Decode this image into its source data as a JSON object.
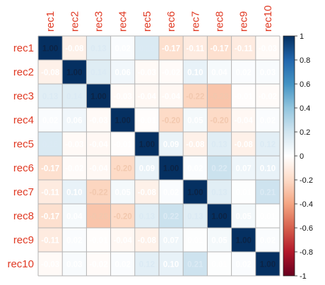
{
  "chart_data": {
    "type": "heatmap",
    "title": "",
    "rows": [
      "rec1",
      "rec2",
      "rec3",
      "rec4",
      "rec5",
      "rec6",
      "rec7",
      "rec8",
      "rec9",
      "rec10"
    ],
    "columns": [
      "rec1",
      "rec2",
      "rec3",
      "rec4",
      "rec5",
      "rec6",
      "rec7",
      "rec8",
      "rec9",
      "rec10"
    ],
    "value_labels": [
      [
        "1.00",
        "-0.08",
        "0.13",
        "0.02",
        "0.16",
        "-0.17",
        "-0.11",
        "-0.17",
        "-0.11",
        "-0.03"
      ],
      [
        "-0.08",
        "1.00",
        "0.14",
        "0.06",
        "-0.03",
        "-0.02",
        "0.10",
        "0.04",
        "0.02",
        "0.03"
      ],
      [
        "0.13",
        "0.14",
        "1.00",
        "-0.03",
        "-0.04",
        "-0.04",
        "-0.22",
        "-0.28",
        "-0.01",
        "-0.02"
      ],
      [
        "0.02",
        "0.06",
        "-0.03",
        "1.00",
        "-0.01",
        "-0.20",
        "0.05",
        "-0.20",
        "-0.04",
        "0.02"
      ],
      [
        "0.16",
        "-0.03",
        "-0.04",
        "-0.01",
        "1.00",
        "0.09",
        "-0.08",
        "0.13",
        "-0.08",
        "0.12"
      ],
      [
        "-0.17",
        "-0.02",
        "-0.04",
        "-0.20",
        "0.09",
        "1.00",
        "0.02",
        "0.22",
        "0.07",
        "0.10"
      ],
      [
        "-0.11",
        "0.10",
        "-0.22",
        "0.05",
        "-0.08",
        "0.02",
        "1.00",
        "0.13",
        "0.01",
        "0.21"
      ],
      [
        "-0.17",
        "0.04",
        "-0.28",
        "-0.20",
        "0.13",
        "0.22",
        "0.13",
        "1.00",
        "0.05",
        "0.01"
      ],
      [
        "-0.11",
        "0.02",
        "-0.01",
        "-0.04",
        "-0.08",
        "0.07",
        "0.01",
        "0.05",
        "1.00",
        "0.02"
      ],
      [
        "-0.03",
        "0.03",
        "-0.02",
        "0.02",
        "0.12",
        "0.10",
        "0.21",
        "0.01",
        "0.02",
        "1.00"
      ]
    ],
    "color_scale": {
      "range": [
        -1,
        1
      ],
      "tick_labels": [
        "1",
        "0.8",
        "0.6",
        "0.4",
        "0.2",
        "0",
        "-0.2",
        "-0.4",
        "-0.6",
        "-0.8",
        "-1"
      ],
      "colors": [
        "#67001F",
        "#B2182B",
        "#D6604D",
        "#F4A582",
        "#FDDBC7",
        "#FFFFFF",
        "#D1E5F0",
        "#92C5DE",
        "#4393C3",
        "#2166AC",
        "#053061"
      ]
    },
    "label_color": "#E03A24",
    "grid_color": "#B3B3B3",
    "legend_position": "right"
  }
}
